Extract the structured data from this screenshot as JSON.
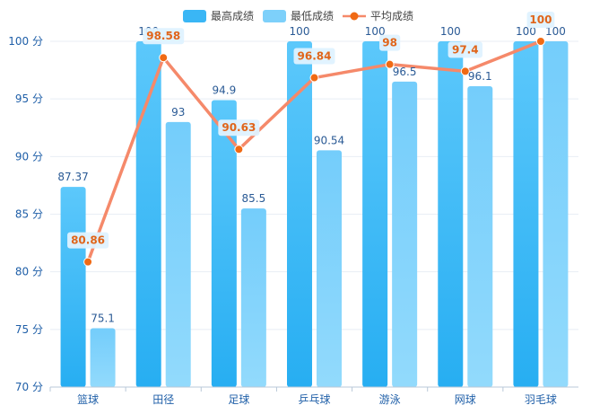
{
  "chart_data": {
    "type": "bar",
    "categories": [
      "篮球",
      "田径",
      "足球",
      "乒乓球",
      "游泳",
      "网球",
      "羽毛球"
    ],
    "series": [
      {
        "name": "最高成绩",
        "type": "bar",
        "color": "#3ab6f5",
        "values": [
          87.37,
          100,
          94.9,
          100,
          100,
          100,
          100
        ]
      },
      {
        "name": "最低成绩",
        "type": "bar",
        "color": "#7dd0fa",
        "values": [
          75.1,
          93,
          85.5,
          90.54,
          96.5,
          96.1,
          100
        ]
      },
      {
        "name": "平均成绩",
        "type": "line",
        "color": "#f5896a",
        "marker_color": "#f06a14",
        "values": [
          80.86,
          98.58,
          90.63,
          96.84,
          98,
          97.4,
          100
        ]
      }
    ],
    "ylim": [
      70,
      100
    ],
    "yticks": [
      70,
      75,
      80,
      85,
      90,
      95,
      100
    ],
    "y_unit": "分",
    "legend": "top-center",
    "grid": true
  }
}
